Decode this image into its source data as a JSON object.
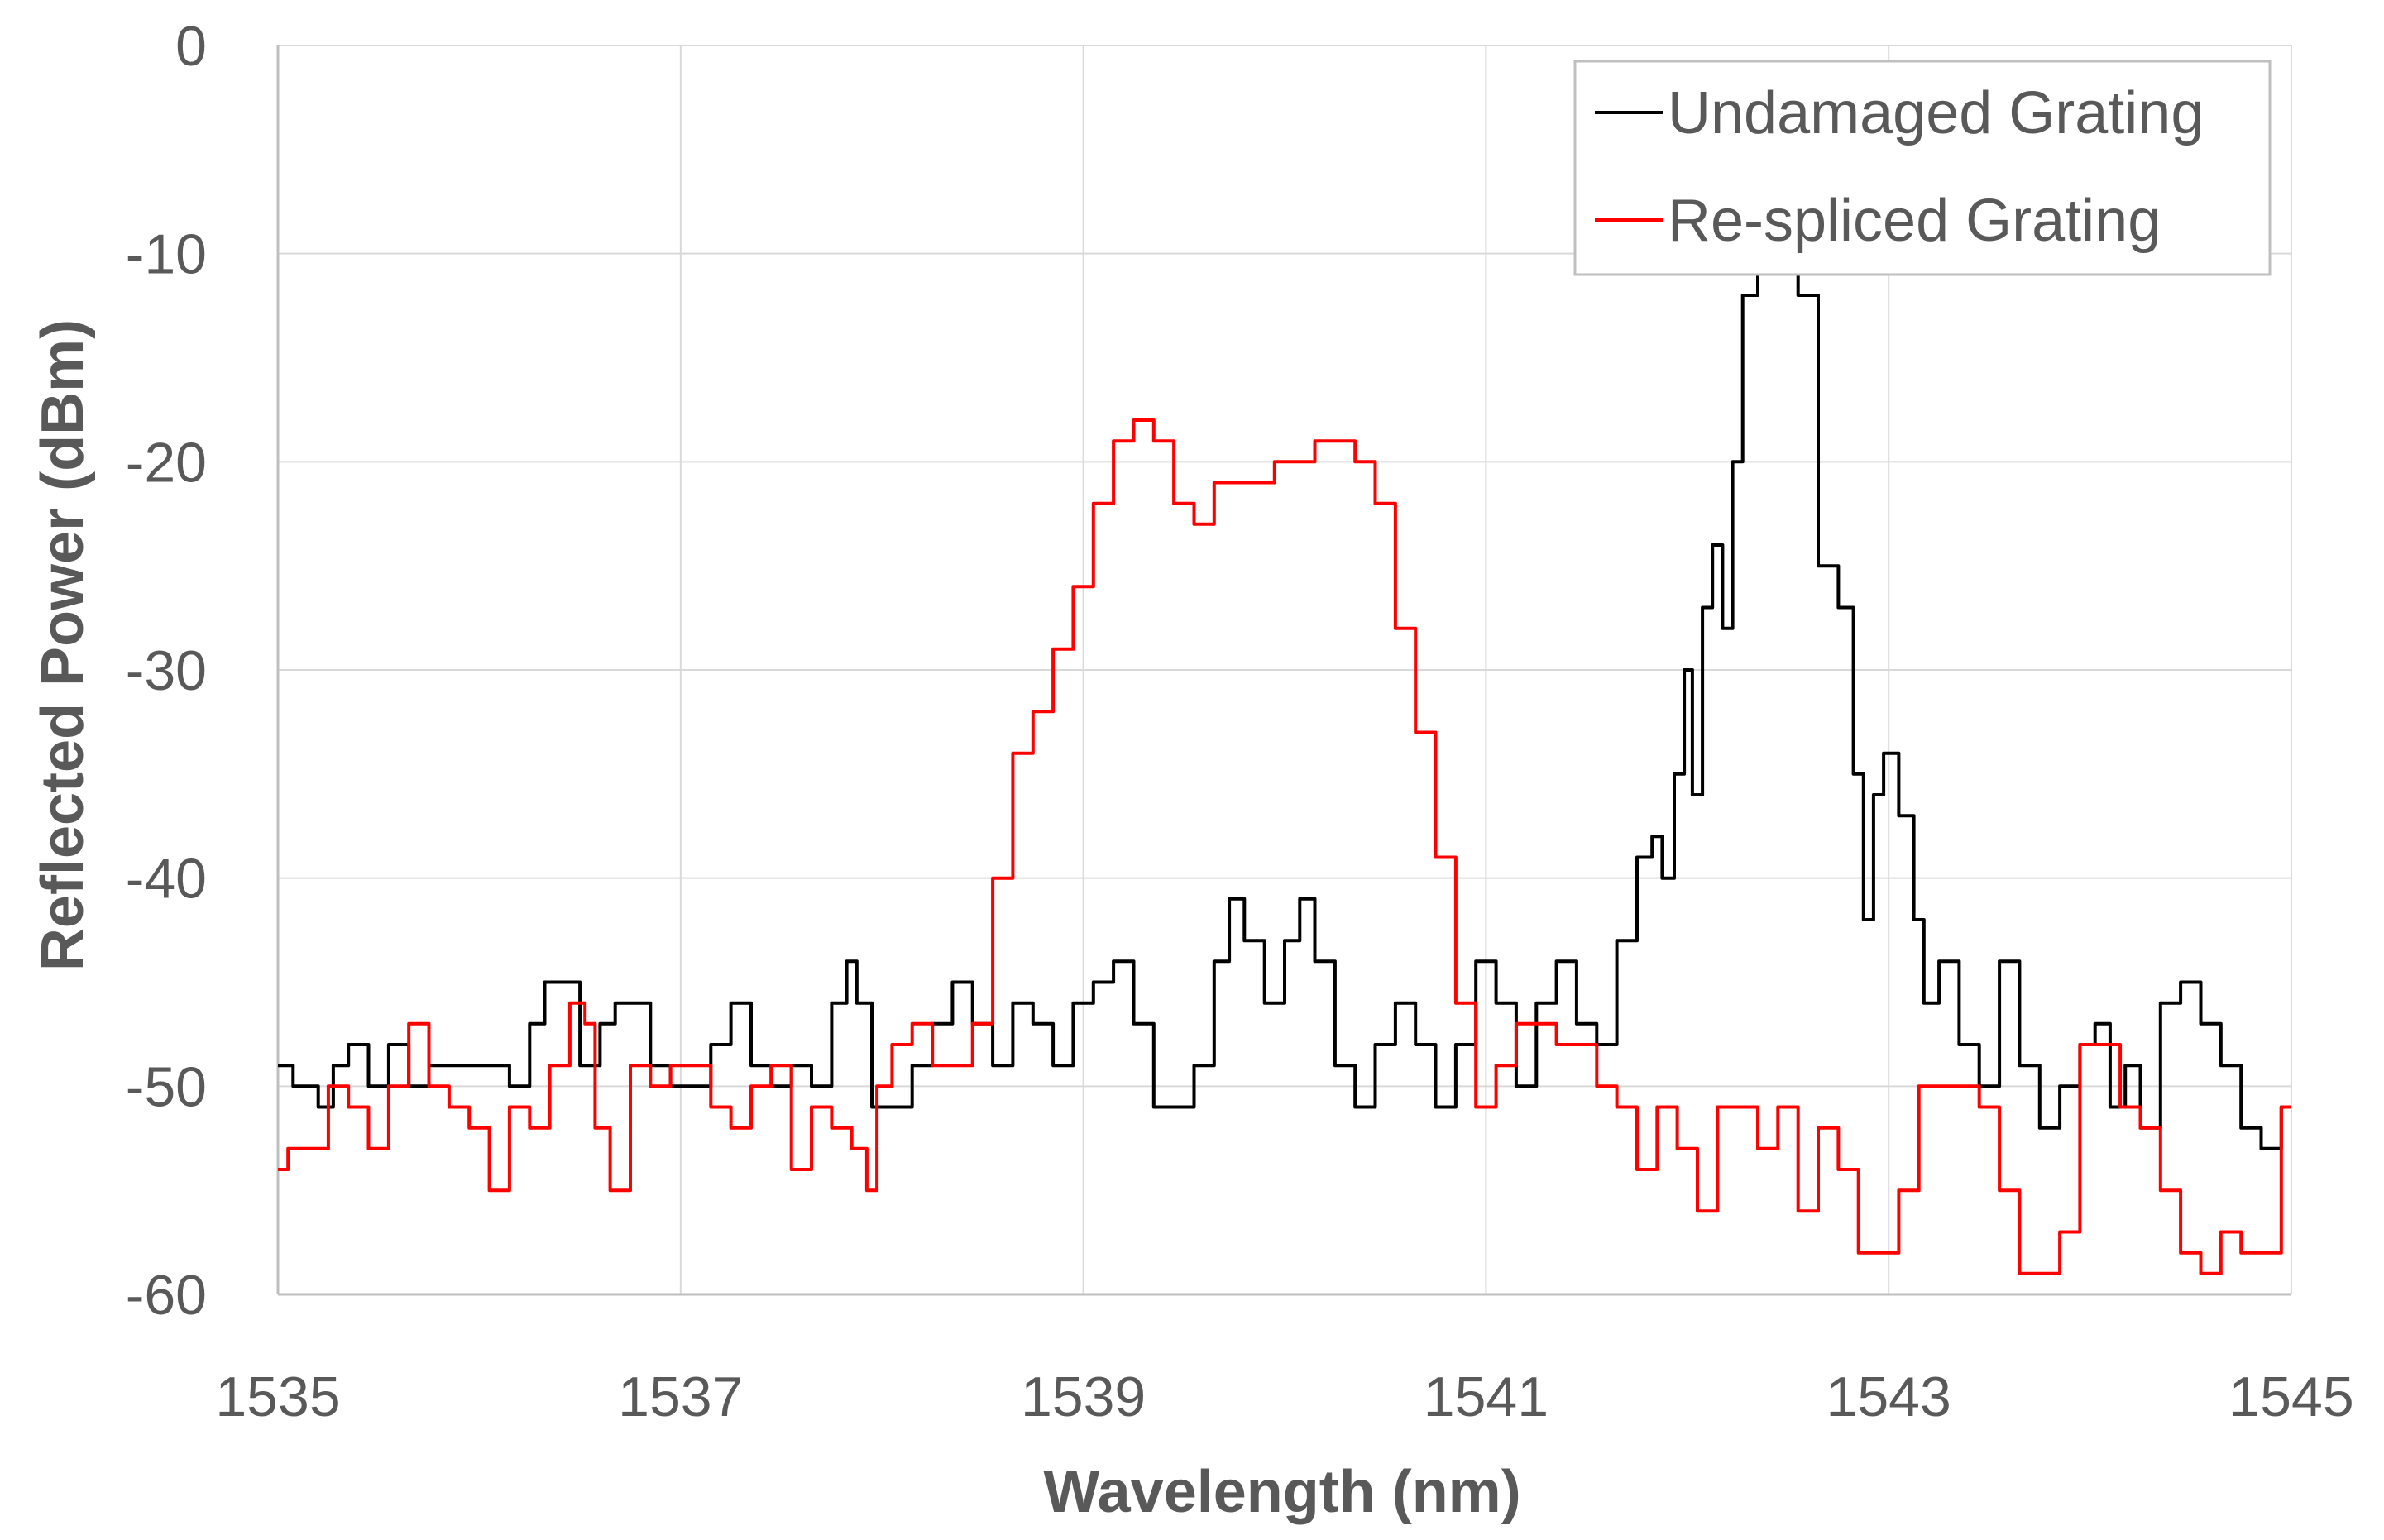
{
  "chart_data": {
    "type": "line",
    "title": "",
    "xlabel": "Wavelength (nm)",
    "ylabel": "Reflected Power (dBm)",
    "xlim": [
      1535,
      1545
    ],
    "ylim": [
      -60,
      0
    ],
    "x_ticks": [
      "1535",
      "1537",
      "1539",
      "1541",
      "1543",
      "1545"
    ],
    "y_ticks": [
      "0",
      "-10",
      "-20",
      "-30",
      "-40",
      "-50",
      "-60"
    ],
    "grid": true,
    "legend_position": "top-right",
    "colors": {
      "Undamaged Grating": "#000000",
      "Re-spliced Grating": "#ff0000",
      "grid": "#d9d9d9",
      "axis": "#bfbfbf"
    },
    "series": [
      {
        "name": "Undamaged Grating",
        "color": "#000000",
        "points": [
          [
            1535.0,
            -49
          ],
          [
            1535.15,
            -50
          ],
          [
            1535.25,
            -51
          ],
          [
            1535.3,
            -49
          ],
          [
            1535.4,
            -48
          ],
          [
            1535.5,
            -50
          ],
          [
            1535.6,
            -48
          ],
          [
            1535.7,
            -50
          ],
          [
            1535.8,
            -49
          ],
          [
            1536.0,
            -49
          ],
          [
            1536.1,
            -49
          ],
          [
            1536.2,
            -50
          ],
          [
            1536.3,
            -47
          ],
          [
            1536.35,
            -45
          ],
          [
            1536.45,
            -45
          ],
          [
            1536.55,
            -49
          ],
          [
            1536.65,
            -47
          ],
          [
            1536.7,
            -46
          ],
          [
            1536.8,
            -46
          ],
          [
            1536.9,
            -49
          ],
          [
            1537.0,
            -50
          ],
          [
            1537.1,
            -50
          ],
          [
            1537.2,
            -48
          ],
          [
            1537.3,
            -46
          ],
          [
            1537.4,
            -49
          ],
          [
            1537.5,
            -50
          ],
          [
            1537.6,
            -49
          ],
          [
            1537.7,
            -50
          ],
          [
            1537.8,
            -46
          ],
          [
            1537.85,
            -44
          ],
          [
            1537.9,
            -46
          ],
          [
            1538.0,
            -51
          ],
          [
            1538.1,
            -51
          ],
          [
            1538.2,
            -49
          ],
          [
            1538.3,
            -47
          ],
          [
            1538.4,
            -45
          ],
          [
            1538.5,
            -47
          ],
          [
            1538.6,
            -49
          ],
          [
            1538.7,
            -46
          ],
          [
            1538.8,
            -47
          ],
          [
            1538.9,
            -49
          ],
          [
            1539.0,
            -46
          ],
          [
            1539.1,
            -45
          ],
          [
            1539.2,
            -44
          ],
          [
            1539.3,
            -47
          ],
          [
            1539.4,
            -51
          ],
          [
            1539.5,
            -51
          ],
          [
            1539.6,
            -49
          ],
          [
            1539.7,
            -44
          ],
          [
            1539.75,
            -41
          ],
          [
            1539.85,
            -43
          ],
          [
            1539.95,
            -46
          ],
          [
            1540.05,
            -43
          ],
          [
            1540.1,
            -41
          ],
          [
            1540.2,
            -44
          ],
          [
            1540.3,
            -49
          ],
          [
            1540.4,
            -51
          ],
          [
            1540.5,
            -48
          ],
          [
            1540.6,
            -46
          ],
          [
            1540.7,
            -48
          ],
          [
            1540.8,
            -51
          ],
          [
            1540.9,
            -48
          ],
          [
            1541.0,
            -44
          ],
          [
            1541.1,
            -46
          ],
          [
            1541.2,
            -50
          ],
          [
            1541.3,
            -46
          ],
          [
            1541.4,
            -44
          ],
          [
            1541.5,
            -47
          ],
          [
            1541.6,
            -48
          ],
          [
            1541.7,
            -43
          ],
          [
            1541.8,
            -39
          ],
          [
            1541.85,
            -38
          ],
          [
            1541.9,
            -40
          ],
          [
            1541.97,
            -35
          ],
          [
            1542.0,
            -30
          ],
          [
            1542.05,
            -36
          ],
          [
            1542.1,
            -27
          ],
          [
            1542.15,
            -24
          ],
          [
            1542.2,
            -28
          ],
          [
            1542.25,
            -20
          ],
          [
            1542.3,
            -12
          ],
          [
            1542.4,
            -7
          ],
          [
            1542.5,
            -7
          ],
          [
            1542.6,
            -12
          ],
          [
            1542.7,
            -25
          ],
          [
            1542.8,
            -27
          ],
          [
            1542.85,
            -35
          ],
          [
            1542.9,
            -42
          ],
          [
            1542.95,
            -36
          ],
          [
            1543.0,
            -34
          ],
          [
            1543.1,
            -37
          ],
          [
            1543.15,
            -42
          ],
          [
            1543.2,
            -46
          ],
          [
            1543.3,
            -44
          ],
          [
            1543.4,
            -48
          ],
          [
            1543.5,
            -50
          ],
          [
            1543.6,
            -44
          ],
          [
            1543.7,
            -49
          ],
          [
            1543.8,
            -52
          ],
          [
            1543.9,
            -50
          ],
          [
            1544.0,
            -48
          ],
          [
            1544.05,
            -47
          ],
          [
            1544.15,
            -51
          ],
          [
            1544.2,
            -49
          ],
          [
            1544.3,
            -52
          ],
          [
            1544.4,
            -46
          ],
          [
            1544.5,
            -45
          ],
          [
            1544.6,
            -47
          ],
          [
            1544.7,
            -49
          ],
          [
            1544.8,
            -52
          ],
          [
            1544.9,
            -53
          ],
          [
            1545.0,
            -51
          ]
        ]
      },
      {
        "name": "Re-spliced Grating",
        "color": "#ff0000",
        "points": [
          [
            1535.0,
            -54
          ],
          [
            1535.1,
            -53
          ],
          [
            1535.2,
            -53
          ],
          [
            1535.3,
            -50
          ],
          [
            1535.4,
            -51
          ],
          [
            1535.5,
            -53
          ],
          [
            1535.6,
            -50
          ],
          [
            1535.7,
            -47
          ],
          [
            1535.8,
            -50
          ],
          [
            1535.9,
            -51
          ],
          [
            1536.0,
            -52
          ],
          [
            1536.1,
            -55
          ],
          [
            1536.2,
            -51
          ],
          [
            1536.3,
            -52
          ],
          [
            1536.4,
            -49
          ],
          [
            1536.5,
            -46
          ],
          [
            1536.55,
            -47
          ],
          [
            1536.6,
            -52
          ],
          [
            1536.7,
            -55
          ],
          [
            1536.8,
            -49
          ],
          [
            1536.9,
            -50
          ],
          [
            1537.0,
            -49
          ],
          [
            1537.1,
            -49
          ],
          [
            1537.2,
            -51
          ],
          [
            1537.3,
            -52
          ],
          [
            1537.4,
            -50
          ],
          [
            1537.5,
            -49
          ],
          [
            1537.6,
            -54
          ],
          [
            1537.7,
            -51
          ],
          [
            1537.8,
            -52
          ],
          [
            1537.9,
            -53
          ],
          [
            1537.95,
            -55
          ],
          [
            1538.0,
            -50
          ],
          [
            1538.1,
            -48
          ],
          [
            1538.2,
            -47
          ],
          [
            1538.3,
            -49
          ],
          [
            1538.4,
            -49
          ],
          [
            1538.5,
            -47
          ],
          [
            1538.6,
            -40
          ],
          [
            1538.7,
            -34
          ],
          [
            1538.8,
            -32
          ],
          [
            1538.9,
            -29
          ],
          [
            1539.0,
            -26
          ],
          [
            1539.1,
            -22
          ],
          [
            1539.2,
            -19
          ],
          [
            1539.3,
            -18
          ],
          [
            1539.4,
            -19
          ],
          [
            1539.5,
            -22
          ],
          [
            1539.6,
            -23
          ],
          [
            1539.7,
            -21
          ],
          [
            1539.8,
            -21
          ],
          [
            1539.9,
            -21
          ],
          [
            1540.0,
            -20
          ],
          [
            1540.1,
            -20
          ],
          [
            1540.2,
            -19
          ],
          [
            1540.3,
            -19
          ],
          [
            1540.4,
            -20
          ],
          [
            1540.5,
            -22
          ],
          [
            1540.6,
            -28
          ],
          [
            1540.7,
            -33
          ],
          [
            1540.8,
            -39
          ],
          [
            1540.9,
            -46
          ],
          [
            1541.0,
            -51
          ],
          [
            1541.1,
            -49
          ],
          [
            1541.2,
            -47
          ],
          [
            1541.3,
            -47
          ],
          [
            1541.4,
            -48
          ],
          [
            1541.5,
            -48
          ],
          [
            1541.6,
            -50
          ],
          [
            1541.7,
            -51
          ],
          [
            1541.8,
            -54
          ],
          [
            1541.9,
            -51
          ],
          [
            1542.0,
            -53
          ],
          [
            1542.1,
            -56
          ],
          [
            1542.2,
            -51
          ],
          [
            1542.3,
            -51
          ],
          [
            1542.4,
            -53
          ],
          [
            1542.5,
            -51
          ],
          [
            1542.6,
            -56
          ],
          [
            1542.7,
            -52
          ],
          [
            1542.8,
            -54
          ],
          [
            1542.9,
            -58
          ],
          [
            1543.0,
            -58
          ],
          [
            1543.1,
            -55
          ],
          [
            1543.2,
            -50
          ],
          [
            1543.3,
            -50
          ],
          [
            1543.4,
            -50
          ],
          [
            1543.5,
            -51
          ],
          [
            1543.6,
            -55
          ],
          [
            1543.7,
            -59
          ],
          [
            1543.8,
            -59
          ],
          [
            1543.9,
            -57
          ],
          [
            1544.0,
            -48
          ],
          [
            1544.1,
            -48
          ],
          [
            1544.2,
            -51
          ],
          [
            1544.3,
            -52
          ],
          [
            1544.4,
            -55
          ],
          [
            1544.5,
            -58
          ],
          [
            1544.6,
            -59
          ],
          [
            1544.7,
            -57
          ],
          [
            1544.8,
            -58
          ],
          [
            1544.9,
            -58
          ],
          [
            1545.0,
            -51
          ]
        ]
      }
    ]
  }
}
